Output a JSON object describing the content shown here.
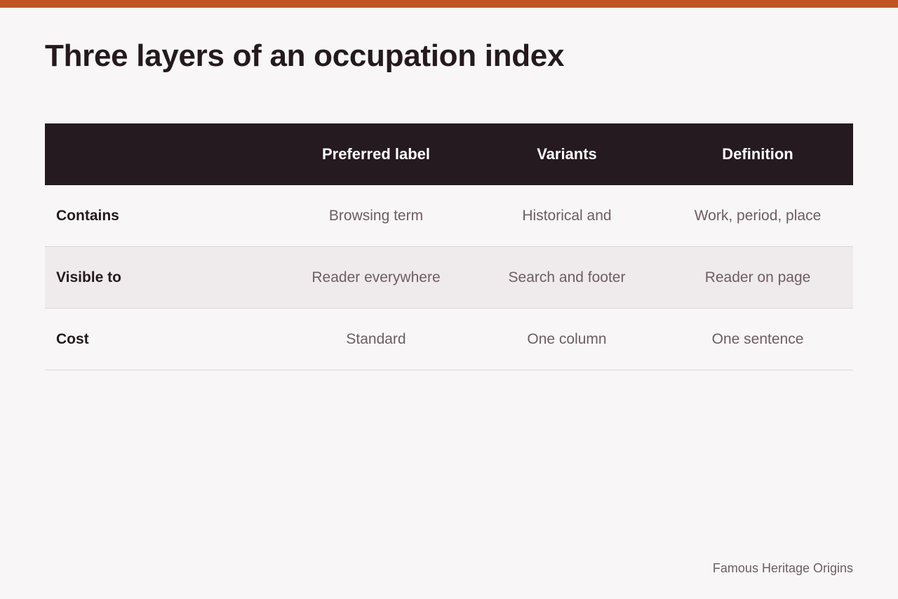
{
  "accent_color": "#bf5524",
  "title": "Three layers of an occupation index",
  "table": {
    "columns": [
      "",
      "Preferred label",
      "Variants",
      "Definition"
    ],
    "rows": [
      {
        "label": "Contains",
        "cells": [
          "Browsing term",
          "Historical and",
          "Work, period, place"
        ]
      },
      {
        "label": "Visible to",
        "cells": [
          "Reader everywhere",
          "Search and footer",
          "Reader on page"
        ]
      },
      {
        "label": "Cost",
        "cells": [
          "Standard",
          "One column",
          "One sentence"
        ]
      }
    ]
  },
  "footer": "Famous Heritage Origins"
}
